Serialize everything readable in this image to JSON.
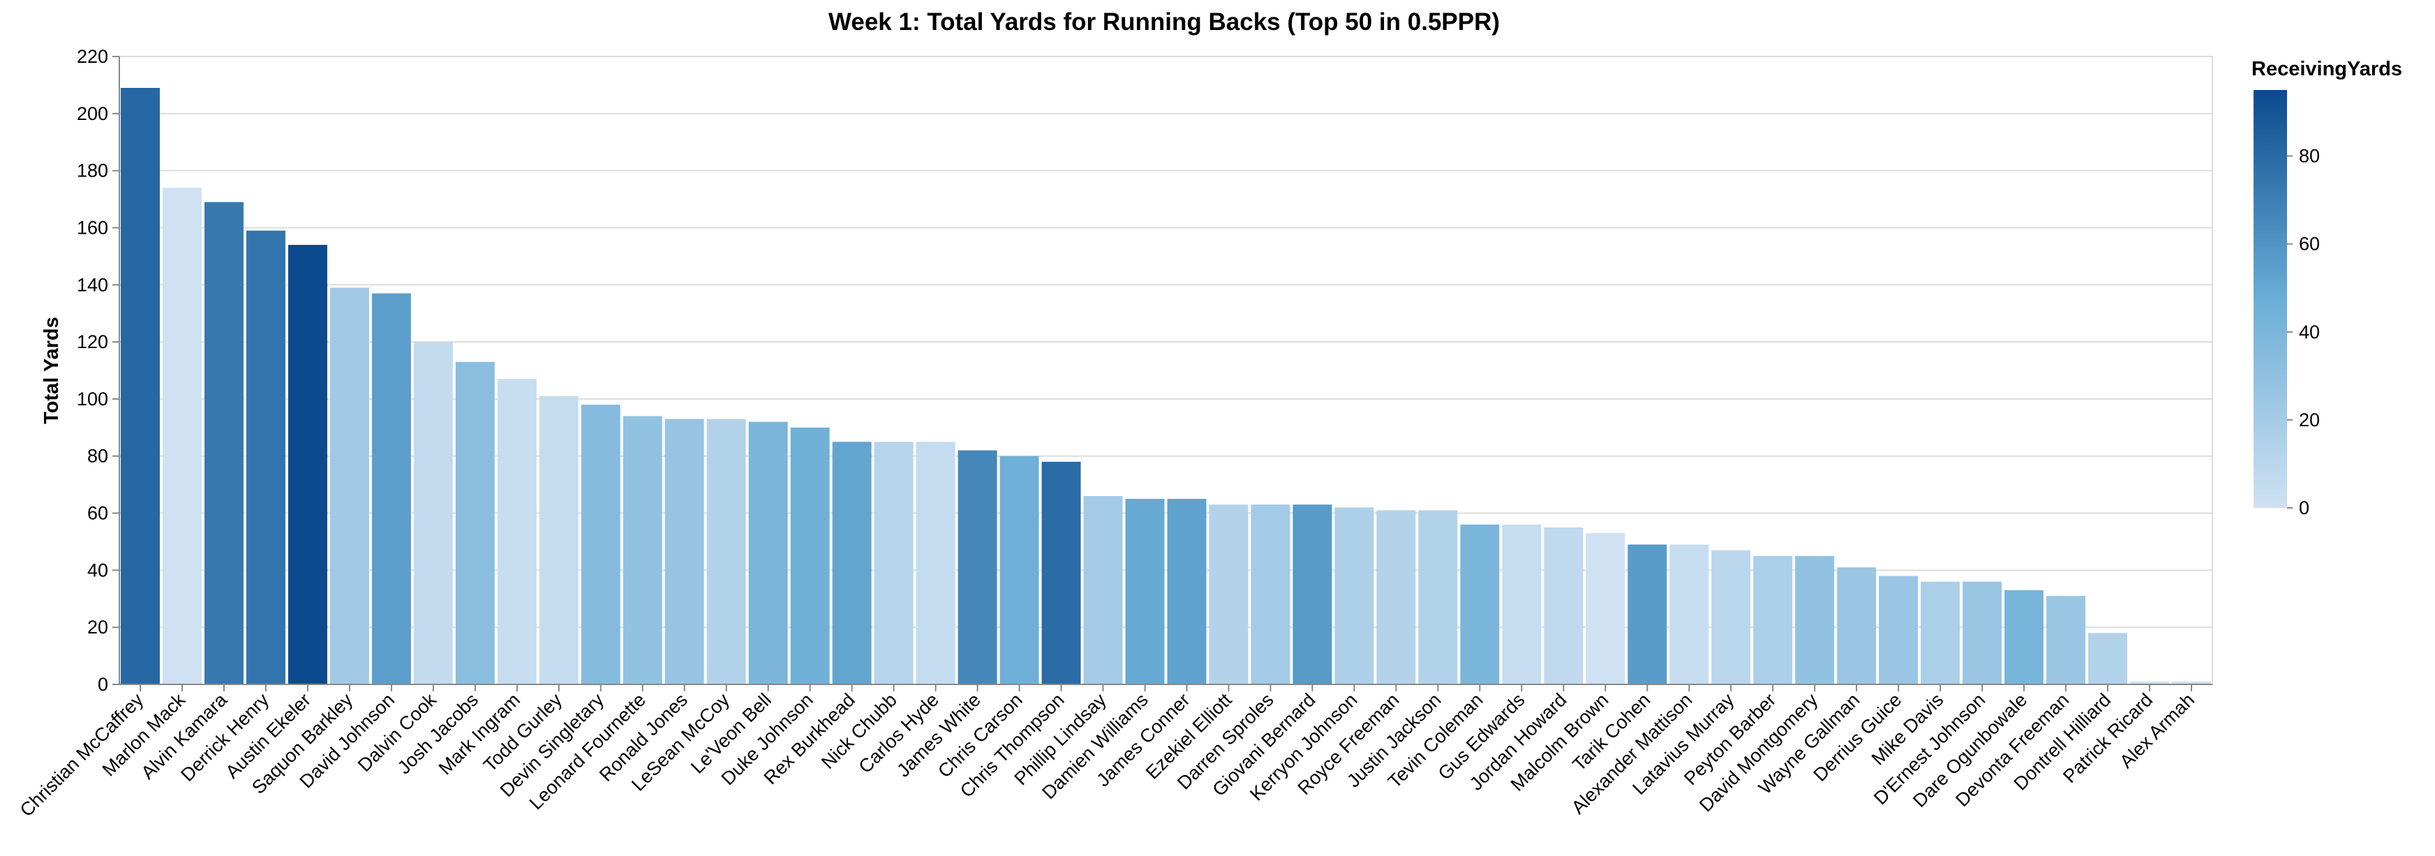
{
  "chart_data": {
    "type": "bar",
    "title": "Week 1: Total Yards for Running Backs (Top 50 in 0.5PPR)",
    "xlabel": "",
    "ylabel": "Total Yards",
    "ylim": [
      0,
      220
    ],
    "yticks": [
      0,
      20,
      40,
      60,
      80,
      100,
      120,
      140,
      160,
      180,
      200,
      220
    ],
    "grid": true,
    "legend": {
      "title": "ReceivingYards",
      "position": "right",
      "type": "gradient",
      "domain": [
        0,
        95
      ],
      "ticks": [
        0,
        20,
        40,
        60,
        80
      ],
      "color_low": "#cfe1f2",
      "color_high": "#0b4a8e"
    },
    "categories": [
      "Christian McCaffrey",
      "Marlon Mack",
      "Alvin Kamara",
      "Derrick Henry",
      "Austin Ekeler",
      "Saquon Barkley",
      "David Johnson",
      "Dalvin Cook",
      "Josh Jacobs",
      "Mark Ingram",
      "Todd Gurley",
      "Devin Singletary",
      "Leonard Fournette",
      "Ronald Jones",
      "LeSean McCoy",
      "Le'Veon Bell",
      "Duke Johnson",
      "Rex Burkhead",
      "Nick Chubb",
      "Carlos Hyde",
      "James White",
      "Chris Carson",
      "Chris Thompson",
      "Phillip Lindsay",
      "Damien Williams",
      "James Conner",
      "Ezekiel Elliott",
      "Darren Sproles",
      "Giovani Bernard",
      "Kerryon Johnson",
      "Royce Freeman",
      "Justin Jackson",
      "Tevin Coleman",
      "Gus Edwards",
      "Jordan Howard",
      "Malcolm Brown",
      "Tarik Cohen",
      "Alexander Mattison",
      "Latavius Murray",
      "Peyton Barber",
      "David Montgomery",
      "Wayne Gallman",
      "Derrius Guice",
      "Mike Davis",
      "D'Ernest Johnson",
      "Dare Ogunbowale",
      "Devonta Freeman",
      "Dontrell Hilliard",
      "Patrick Ricard",
      "Alex Armah"
    ],
    "series": [
      {
        "name": "Total Yards",
        "values": [
          209,
          174,
          169,
          159,
          154,
          139,
          137,
          120,
          113,
          107,
          101,
          98,
          94,
          93,
          93,
          92,
          90,
          85,
          85,
          85,
          82,
          80,
          78,
          66,
          65,
          65,
          63,
          63,
          63,
          62,
          61,
          61,
          56,
          56,
          55,
          53,
          49,
          49,
          47,
          45,
          45,
          41,
          38,
          36,
          36,
          33,
          31,
          18,
          1,
          1
        ]
      },
      {
        "name": "ReceivingYards",
        "values": [
          81,
          0,
          73,
          75,
          96,
          22,
          55,
          6,
          33,
          4,
          5,
          35,
          29,
          27,
          14,
          40,
          45,
          52,
          12,
          5,
          66,
          46,
          79,
          21,
          50,
          53,
          13,
          21,
          57,
          16,
          13,
          14,
          40,
          4,
          7,
          0,
          56,
          4,
          10,
          17,
          29,
          25,
          25,
          17,
          25,
          42,
          25,
          14,
          1,
          1
        ]
      }
    ]
  }
}
